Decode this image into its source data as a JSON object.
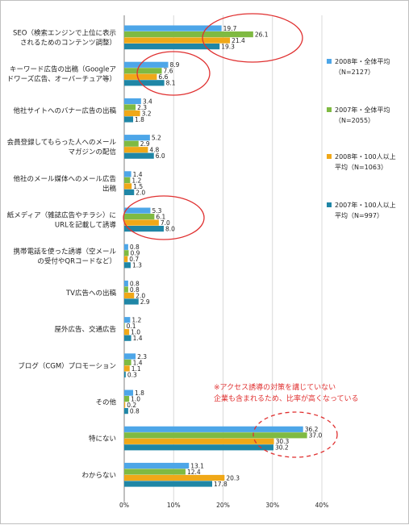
{
  "chart_data": {
    "type": "bar",
    "orientation": "horizontal",
    "categories": [
      [
        "SEO（検索エンジンで上位に表示",
        "されるためのコンテンツ調整）"
      ],
      [
        "キーワード広告の出稿（Googleア",
        "ドワーズ広告、オーバーチュア等）"
      ],
      [
        "他社サイトへのバナー広告の出稿"
      ],
      [
        "会員登録してもらった人へのメール",
        "マガジンの配信"
      ],
      [
        "他社のメール媒体へのメール広告",
        "出稿"
      ],
      [
        "紙メディア（雑誌広告やチラシ）に",
        "URLを記載して誘導"
      ],
      [
        "携帯電話を使った誘導（空メール",
        "の受付やQRコードなど）"
      ],
      [
        "TV広告への出稿"
      ],
      [
        "屋外広告、交通広告"
      ],
      [
        "ブログ（CGM）プロモーション"
      ],
      [
        "その他"
      ],
      [
        "特にない"
      ],
      [
        "わからない"
      ]
    ],
    "series": [
      {
        "name": "2008年・全体平均（N=2127）",
        "name_lines": [
          "2008年・全体平均",
          "（N=2127）"
        ],
        "color": "#4da6e8",
        "values": [
          19.7,
          8.9,
          3.4,
          5.2,
          1.4,
          5.3,
          0.8,
          0.8,
          1.2,
          2.3,
          1.8,
          36.2,
          13.1
        ]
      },
      {
        "name": "2007年・全体平均（N=2055）",
        "name_lines": [
          "2007年・全体平均",
          "（N=2055）"
        ],
        "color": "#7fba42",
        "values": [
          26.1,
          7.6,
          2.3,
          2.9,
          1.2,
          6.1,
          0.9,
          0.8,
          0.1,
          1.4,
          1.0,
          37.0,
          12.4
        ]
      },
      {
        "name": "2008年・100人以上平均（N=1063）",
        "name_lines": [
          "2008年・100人以上",
          "平均（N=1063）"
        ],
        "color": "#f0a818",
        "values": [
          21.4,
          6.6,
          3.2,
          4.8,
          1.5,
          7.0,
          0.7,
          2.0,
          1.0,
          1.1,
          0.2,
          30.3,
          20.3
        ]
      },
      {
        "name": "2007年・100人以上平均（N=997）",
        "name_lines": [
          "2007年・100人以上",
          "平均（N=997）"
        ],
        "color": "#1f86a6",
        "values": [
          19.3,
          8.1,
          1.8,
          6.0,
          2.0,
          8.0,
          1.3,
          2.9,
          1.4,
          0.3,
          0.8,
          30.2,
          17.8
        ]
      }
    ],
    "xlim": [
      0,
      40
    ],
    "x_ticks": [
      "0%",
      "10%",
      "20%",
      "30%",
      "40%"
    ],
    "grid": true,
    "legend_position": "right",
    "highlight_ellipses": [
      0,
      1,
      5
    ],
    "highlight_dashed": 11,
    "annotation_lines": [
      "※アクセス誘導の対策を講じていない",
      "企業も含まれるため、比率が高くなっている"
    ],
    "annotation_color": "#e03030"
  }
}
